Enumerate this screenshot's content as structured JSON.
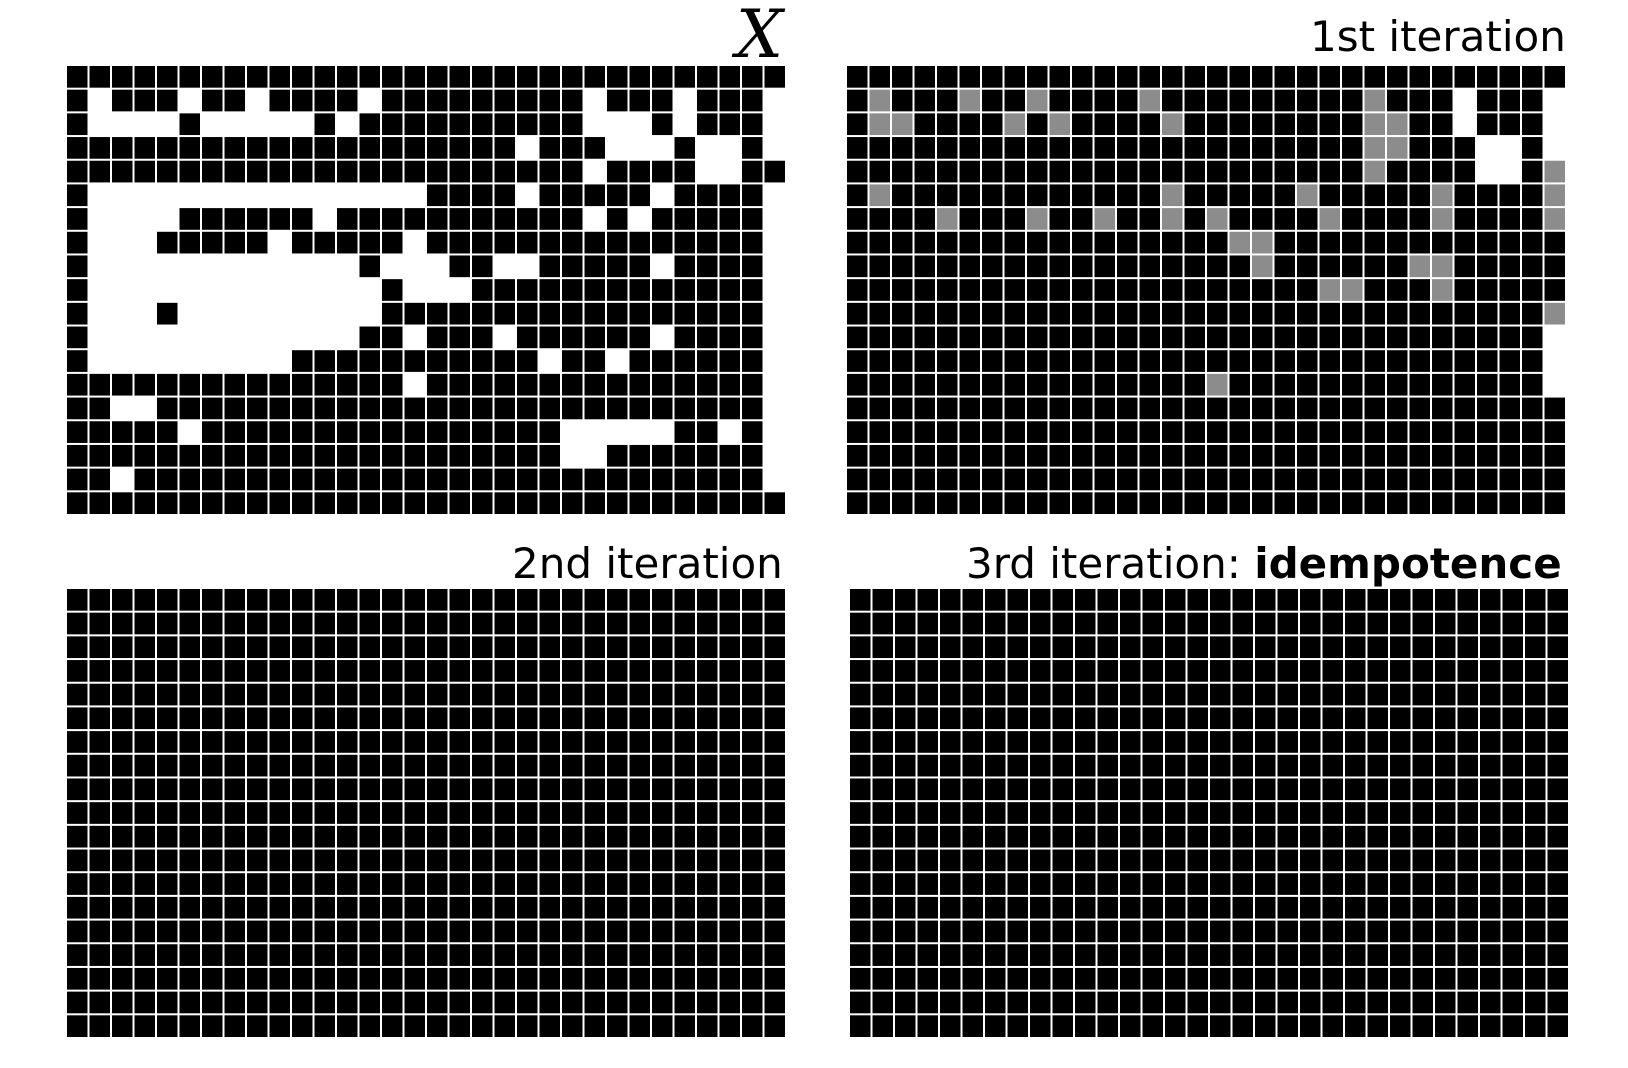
{
  "colors": {
    "filled": "#000000",
    "empty": "#ffffff",
    "changed": "#8c8c8c",
    "gridline": "#ffffff"
  },
  "legend_codes": {
    "0": "empty",
    "1": "filled",
    "2": "changed"
  },
  "panels": [
    {
      "id": "input",
      "title": "",
      "title_math": "X",
      "cells": [
        "11111111111111111111111111111111",
        "10111011011110111111111011101110",
        "10000100000101111111111000101110",
        "11111111111111111111011100010010",
        "11111111111111111111111011110011",
        "10000000000000001111011111011110",
        "10000111111011111111111010111110",
        "10001111101111101111111111111110",
        "10000000000001000110011111011110",
        "10000000000000100011111111111110",
        "10001000000000111111111111111110",
        "10000000000001101110111111011110",
        "10000000001111111111101101111110",
        "11111111111111101111111111111110",
        "11001111111111111111111111111110",
        "11111011111111111111110000011010",
        "11111111111111111111110011111110",
        "11011111111111111111111111111110",
        "11111111111111111111111111111111"
      ]
    },
    {
      "id": "iter1",
      "title": "1st iteration",
      "title_math": "",
      "cells": [
        "11111111111111111111111111111111",
        "12111211211112111111111211101110",
        "12211112121111211111111221101110",
        "11111111111111111111111221110010",
        "11111111111111111111111211110012",
        "12111111111111211111211111211112",
        "11112111211211212111121111211112",
        "11111111111111111221111111111111",
        "11111111111111111121111112211111",
        "11111111111111111111122111211111",
        "11111111111111111111111111111112",
        "11111111111111111111111111111110",
        "11111111111111111111111111111110",
        "11111111111111112111111111111110",
        "11111111111111111111111111111111",
        "11111111111111111111111111111111",
        "11111111111111111111111111111111",
        "11111111111111111111111111111111",
        "11111111111111111111111111111111"
      ]
    },
    {
      "id": "iter2",
      "title": "2nd iteration",
      "title_math": "",
      "cells": [
        "11111111111111111111111111111111",
        "11111111111111111111111111111111",
        "11111111111111111111111111111111",
        "11111111111111111111111111111111",
        "11111111111111111111111111111111",
        "11111111111111111111111111111111",
        "11111111111111111111111111111111",
        "11111111111111111111111111111111",
        "11111111111111111111111111111111",
        "11111111111111111111111111111111",
        "11111111111111111111111111111111",
        "11111111111111111111111111111111",
        "11111111111111111111111111111111",
        "11111111111111111111111111111111",
        "11111111111111111111111111111111",
        "11111111111111111111111111111111",
        "11111111111111111111111111111111",
        "11111111111111111111111111111111",
        "11111111111111111111111111111111"
      ]
    },
    {
      "id": "iter3",
      "title": "3rd iteration: ",
      "title_bold": "idempotence",
      "title_math": "",
      "cells": [
        "11111111111111111111111111111111",
        "11111111111111111111111111111111",
        "11111111111111111111111111111111",
        "11111111111111111111111111111111",
        "11111111111111111111111111111111",
        "11111111111111111111111111111111",
        "11111111111111111111111111111111",
        "11111111111111111111111111111111",
        "11111111111111111111111111111111",
        "11111111111111111111111111111111",
        "11111111111111111111111111111111",
        "11111111111111111111111111111111",
        "11111111111111111111111111111111",
        "11111111111111111111111111111111",
        "11111111111111111111111111111111",
        "11111111111111111111111111111111",
        "11111111111111111111111111111111",
        "11111111111111111111111111111111",
        "11111111111111111111111111111111"
      ]
    }
  ]
}
